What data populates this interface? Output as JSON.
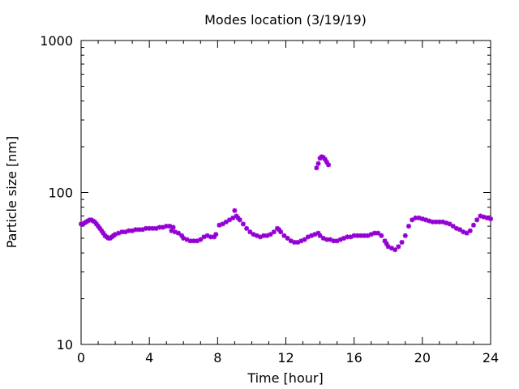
{
  "chart_data": {
    "type": "scatter",
    "title": "Modes location (3/19/19)",
    "xlabel": "Time [hour]",
    "ylabel": "Particle size [nm]",
    "xlim": [
      0,
      24
    ],
    "ylim": [
      10,
      1000
    ],
    "yscale": "log",
    "x_ticks": [
      "0",
      "4",
      "8",
      "12",
      "16",
      "20",
      "24"
    ],
    "y_ticks": [
      "10",
      "100",
      "1000"
    ],
    "marker_color": "#9400d3",
    "grid": false,
    "legend": "none",
    "points": [
      [
        0.0,
        62
      ],
      [
        0.1,
        62
      ],
      [
        0.2,
        63
      ],
      [
        0.3,
        64
      ],
      [
        0.4,
        65
      ],
      [
        0.5,
        66
      ],
      [
        0.6,
        66
      ],
      [
        0.7,
        65
      ],
      [
        0.8,
        64
      ],
      [
        0.9,
        62
      ],
      [
        1.0,
        60
      ],
      [
        1.1,
        58
      ],
      [
        1.2,
        56
      ],
      [
        1.3,
        54
      ],
      [
        1.4,
        52
      ],
      [
        1.5,
        51
      ],
      [
        1.6,
        50
      ],
      [
        1.7,
        50
      ],
      [
        1.8,
        51
      ],
      [
        1.9,
        52
      ],
      [
        2.0,
        53
      ],
      [
        2.2,
        54
      ],
      [
        2.4,
        55
      ],
      [
        2.6,
        55
      ],
      [
        2.8,
        56
      ],
      [
        3.0,
        56
      ],
      [
        3.2,
        57
      ],
      [
        3.4,
        57
      ],
      [
        3.6,
        57
      ],
      [
        3.8,
        58
      ],
      [
        4.0,
        58
      ],
      [
        4.2,
        58
      ],
      [
        4.4,
        58
      ],
      [
        4.6,
        59
      ],
      [
        4.8,
        59
      ],
      [
        5.0,
        60
      ],
      [
        5.2,
        60
      ],
      [
        5.4,
        59
      ],
      [
        5.3,
        56
      ],
      [
        5.5,
        55
      ],
      [
        5.7,
        54
      ],
      [
        5.9,
        52
      ],
      [
        6.0,
        50
      ],
      [
        6.2,
        49
      ],
      [
        6.4,
        48
      ],
      [
        6.6,
        48
      ],
      [
        6.8,
        48
      ],
      [
        7.0,
        49
      ],
      [
        7.2,
        51
      ],
      [
        7.4,
        52
      ],
      [
        7.6,
        51
      ],
      [
        7.8,
        51
      ],
      [
        7.9,
        53
      ],
      [
        8.1,
        61
      ],
      [
        8.3,
        62
      ],
      [
        8.5,
        64
      ],
      [
        8.7,
        66
      ],
      [
        8.9,
        68
      ],
      [
        9.0,
        76
      ],
      [
        9.1,
        70
      ],
      [
        9.2,
        68
      ],
      [
        9.3,
        66
      ],
      [
        9.5,
        62
      ],
      [
        9.7,
        58
      ],
      [
        9.9,
        55
      ],
      [
        10.1,
        53
      ],
      [
        10.3,
        52
      ],
      [
        10.5,
        51
      ],
      [
        10.7,
        52
      ],
      [
        10.9,
        52
      ],
      [
        11.1,
        53
      ],
      [
        11.3,
        55
      ],
      [
        11.5,
        58
      ],
      [
        11.6,
        57
      ],
      [
        11.7,
        55
      ],
      [
        11.9,
        52
      ],
      [
        12.1,
        50
      ],
      [
        12.3,
        48
      ],
      [
        12.5,
        47
      ],
      [
        12.7,
        47
      ],
      [
        12.9,
        48
      ],
      [
        13.1,
        49
      ],
      [
        13.3,
        51
      ],
      [
        13.5,
        52
      ],
      [
        13.7,
        53
      ],
      [
        13.9,
        54
      ],
      [
        14.0,
        52
      ],
      [
        14.2,
        50
      ],
      [
        14.4,
        49
      ],
      [
        14.6,
        49
      ],
      [
        14.8,
        48
      ],
      [
        15.0,
        48
      ],
      [
        15.2,
        49
      ],
      [
        15.4,
        50
      ],
      [
        15.6,
        51
      ],
      [
        15.8,
        51
      ],
      [
        16.0,
        52
      ],
      [
        16.2,
        52
      ],
      [
        16.4,
        52
      ],
      [
        16.6,
        52
      ],
      [
        16.8,
        52
      ],
      [
        17.0,
        53
      ],
      [
        17.2,
        54
      ],
      [
        17.4,
        54
      ],
      [
        17.6,
        52
      ],
      [
        17.8,
        48
      ],
      [
        17.9,
        46
      ],
      [
        18.0,
        44
      ],
      [
        18.2,
        43
      ],
      [
        18.4,
        42
      ],
      [
        18.6,
        44
      ],
      [
        18.8,
        47
      ],
      [
        19.0,
        52
      ],
      [
        19.2,
        60
      ],
      [
        19.4,
        66
      ],
      [
        19.6,
        68
      ],
      [
        19.8,
        68
      ],
      [
        20.0,
        67
      ],
      [
        20.2,
        66
      ],
      [
        20.4,
        65
      ],
      [
        20.6,
        64
      ],
      [
        20.8,
        64
      ],
      [
        21.0,
        64
      ],
      [
        21.2,
        64
      ],
      [
        21.4,
        63
      ],
      [
        21.6,
        62
      ],
      [
        21.8,
        60
      ],
      [
        22.0,
        58
      ],
      [
        22.2,
        57
      ],
      [
        22.4,
        55
      ],
      [
        22.6,
        54
      ],
      [
        22.8,
        56
      ],
      [
        23.0,
        61
      ],
      [
        23.2,
        66
      ],
      [
        23.4,
        70
      ],
      [
        23.6,
        69
      ],
      [
        23.8,
        68
      ],
      [
        24.0,
        67
      ],
      [
        13.8,
        145
      ],
      [
        13.9,
        155
      ],
      [
        14.0,
        168
      ],
      [
        14.1,
        172
      ],
      [
        14.2,
        170
      ],
      [
        14.3,
        165
      ],
      [
        14.4,
        158
      ],
      [
        14.5,
        152
      ]
    ]
  }
}
